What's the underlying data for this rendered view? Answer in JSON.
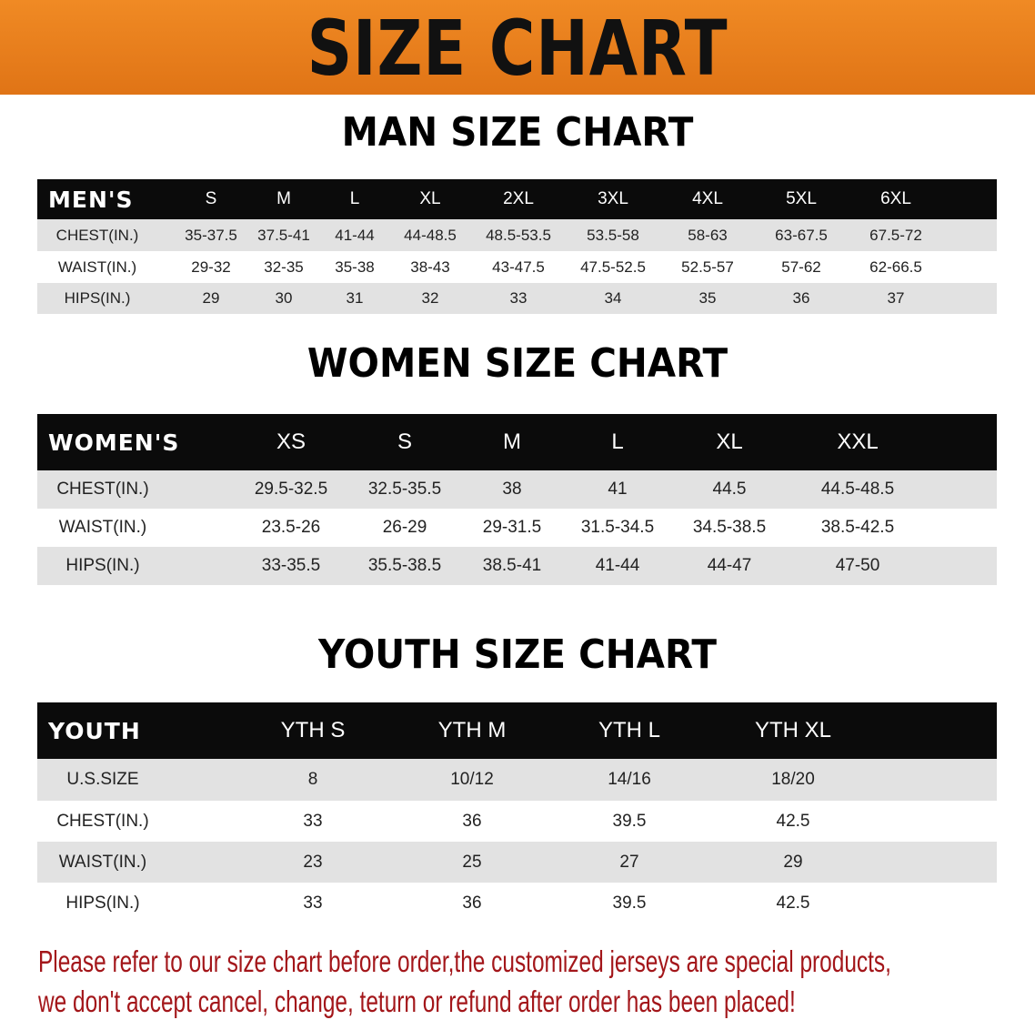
{
  "banner": {
    "title": "SIZE CHART",
    "color": "#e87d1e"
  },
  "men": {
    "title": "MAN SIZE CHART",
    "header": "MEN'S",
    "sizes": [
      "S",
      "M",
      "L",
      "XL",
      "2XL",
      "3XL",
      "4XL",
      "5XL",
      "6XL"
    ],
    "rows": [
      {
        "label": "CHEST(IN.)",
        "values": [
          "35-37.5",
          "37.5-41",
          "41-44",
          "44-48.5",
          "48.5-53.5",
          "53.5-58",
          "58-63",
          "63-67.5",
          "67.5-72"
        ]
      },
      {
        "label": "WAIST(IN.)",
        "values": [
          "29-32",
          "32-35",
          "35-38",
          "38-43",
          "43-47.5",
          "47.5-52.5",
          "52.5-57",
          "57-62",
          "62-66.5"
        ]
      },
      {
        "label": "HIPS(IN.)",
        "values": [
          "29",
          "30",
          "31",
          "32",
          "33",
          "34",
          "35",
          "36",
          "37"
        ]
      }
    ]
  },
  "women": {
    "title": "WOMEN SIZE CHART",
    "header": "WOMEN'S",
    "sizes": [
      "XS",
      "S",
      "M",
      "L",
      "XL",
      "XXL"
    ],
    "rows": [
      {
        "label": "CHEST(IN.)",
        "values": [
          "29.5-32.5",
          "32.5-35.5",
          "38",
          "41",
          "44.5",
          "44.5-48.5"
        ]
      },
      {
        "label": "WAIST(IN.)",
        "values": [
          "23.5-26",
          "26-29",
          "29-31.5",
          "31.5-34.5",
          "34.5-38.5",
          "38.5-42.5"
        ]
      },
      {
        "label": "HIPS(IN.)",
        "values": [
          "33-35.5",
          "35.5-38.5",
          "38.5-41",
          "41-44",
          "44-47",
          "47-50"
        ]
      }
    ]
  },
  "youth": {
    "title": "YOUTH SIZE CHART",
    "header": "YOUTH",
    "sizes": [
      "YTH S",
      "YTH M",
      "YTH L",
      "YTH XL"
    ],
    "rows": [
      {
        "label": "U.S.SIZE",
        "values": [
          "8",
          "10/12",
          "14/16",
          "18/20"
        ]
      },
      {
        "label": "CHEST(IN.)",
        "values": [
          "33",
          "36",
          "39.5",
          "42.5"
        ]
      },
      {
        "label": "WAIST(IN.)",
        "values": [
          "23",
          "25",
          "27",
          "29"
        ]
      },
      {
        "label": "HIPS(IN.)",
        "values": [
          "33",
          "36",
          "39.5",
          "42.5"
        ]
      }
    ]
  },
  "notice": {
    "line1": "Please refer to our size chart before order,the customized jerseys are special products,",
    "line2": "we don't accept cancel, change, teturn or refund after order has been placed!",
    "color": "#a3161a"
  }
}
